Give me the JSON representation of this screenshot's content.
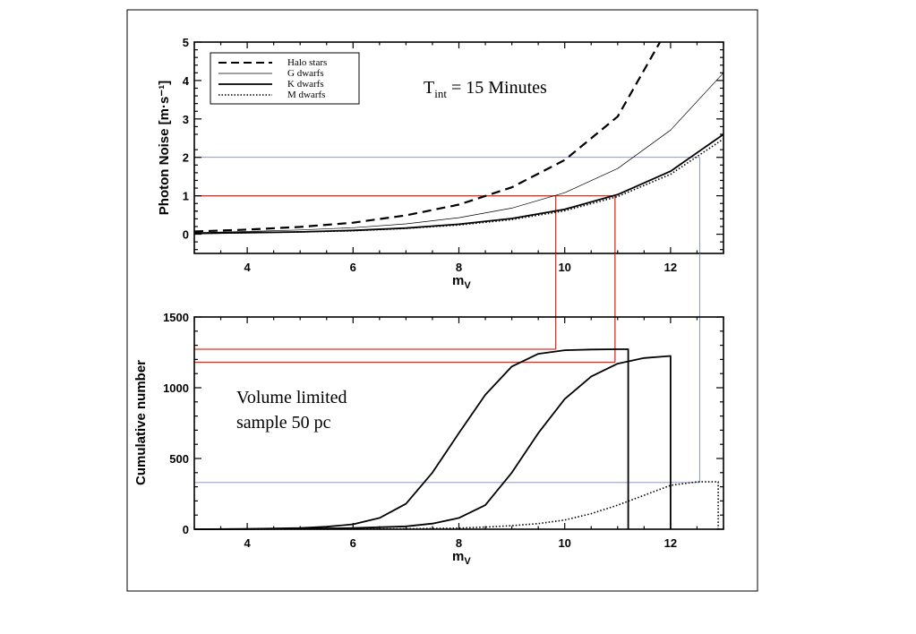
{
  "chart_data": [
    {
      "type": "line",
      "ylabel": "Photon Noise [m·s⁻¹]",
      "xlabel": "m",
      "xlabel_sub": "V",
      "xlim": [
        3,
        13
      ],
      "ylim": [
        -0.5,
        5
      ],
      "xticks": [
        4,
        6,
        8,
        10,
        12
      ],
      "yticks": [
        0,
        1,
        2,
        3,
        4,
        5
      ],
      "legend_placement": "top-left",
      "annotation": {
        "main": "T",
        "sub": "int",
        "rest": " = 15 Minutes"
      },
      "series": [
        {
          "name": "Halo stars",
          "style": "dashed",
          "x": [
            3,
            4,
            5,
            6,
            7,
            8,
            9,
            10,
            11,
            11.8
          ],
          "y": [
            0.07,
            0.12,
            0.19,
            0.3,
            0.49,
            0.77,
            1.22,
            1.93,
            3.06,
            5.0
          ]
        },
        {
          "name": "G dwarfs",
          "style": "thin",
          "x": [
            3,
            4,
            5,
            6,
            7,
            8,
            9,
            10,
            11,
            12,
            13
          ],
          "y": [
            0.04,
            0.07,
            0.11,
            0.17,
            0.27,
            0.43,
            0.68,
            1.08,
            1.71,
            2.71,
            4.2
          ]
        },
        {
          "name": "K dwarfs",
          "style": "solid",
          "x": [
            3,
            4,
            5,
            6,
            7,
            8,
            9,
            10,
            11,
            12,
            13
          ],
          "y": [
            0.02,
            0.04,
            0.06,
            0.1,
            0.16,
            0.26,
            0.41,
            0.65,
            1.03,
            1.64,
            2.6
          ]
        },
        {
          "name": "M dwarfs",
          "style": "dotted",
          "x": [
            3,
            4,
            5,
            6,
            7,
            8,
            9,
            10,
            11,
            12,
            13
          ],
          "y": [
            0.02,
            0.04,
            0.06,
            0.09,
            0.15,
            0.24,
            0.38,
            0.61,
            0.98,
            1.56,
            2.48
          ]
        }
      ],
      "reference_lines": [
        {
          "color": "#e03020",
          "y": 1,
          "x_end": 9.83
        },
        {
          "color": "#e03020",
          "y": 1,
          "x_end": 10.95
        },
        {
          "color": "#7f86c8",
          "y": 2,
          "x_end": 12.55
        }
      ]
    },
    {
      "type": "line",
      "ylabel": "Cumulative number",
      "xlabel": "m",
      "xlabel_sub": "V",
      "xlim": [
        3,
        13
      ],
      "ylim": [
        0,
        1500
      ],
      "xticks": [
        4,
        6,
        8,
        10,
        12
      ],
      "yticks": [
        0,
        500,
        1000,
        1500
      ],
      "annotation_lines": [
        "Volume limited",
        "sample 50 pc"
      ],
      "series": [
        {
          "style": "solid",
          "x": [
            3,
            4,
            5,
            5.5,
            6,
            6.5,
            7,
            7.5,
            8,
            8.5,
            9,
            9.5,
            10,
            10.5,
            11,
            11.2,
            11.2
          ],
          "y": [
            0,
            2,
            8,
            18,
            35,
            80,
            180,
            400,
            680,
            950,
            1150,
            1240,
            1265,
            1270,
            1272,
            1272,
            0
          ]
        },
        {
          "style": "solid",
          "x": [
            3,
            4,
            5,
            6,
            7,
            7.5,
            8,
            8.5,
            9,
            9.5,
            10,
            10.5,
            11,
            11.5,
            12,
            12,
            12
          ],
          "y": [
            0,
            1,
            3,
            8,
            20,
            40,
            80,
            170,
            400,
            680,
            920,
            1080,
            1170,
            1210,
            1225,
            1225,
            0
          ]
        },
        {
          "style": "dotted",
          "x": [
            3,
            5,
            6,
            7,
            8,
            8.5,
            9,
            9.5,
            10,
            10.5,
            11,
            11.5,
            12,
            12.5,
            12.9,
            12.9
          ],
          "y": [
            0,
            0,
            1,
            3,
            8,
            15,
            25,
            40,
            65,
            110,
            170,
            240,
            310,
            335,
            335,
            0
          ]
        }
      ],
      "reference_lines": [
        {
          "color": "#e03020",
          "y": 1272,
          "x_from": 9.83
        },
        {
          "color": "#e03020",
          "y": 1180,
          "x_from": 10.95
        },
        {
          "color": "#7f86c8",
          "y": 330,
          "x_from": 12.55
        }
      ]
    }
  ]
}
